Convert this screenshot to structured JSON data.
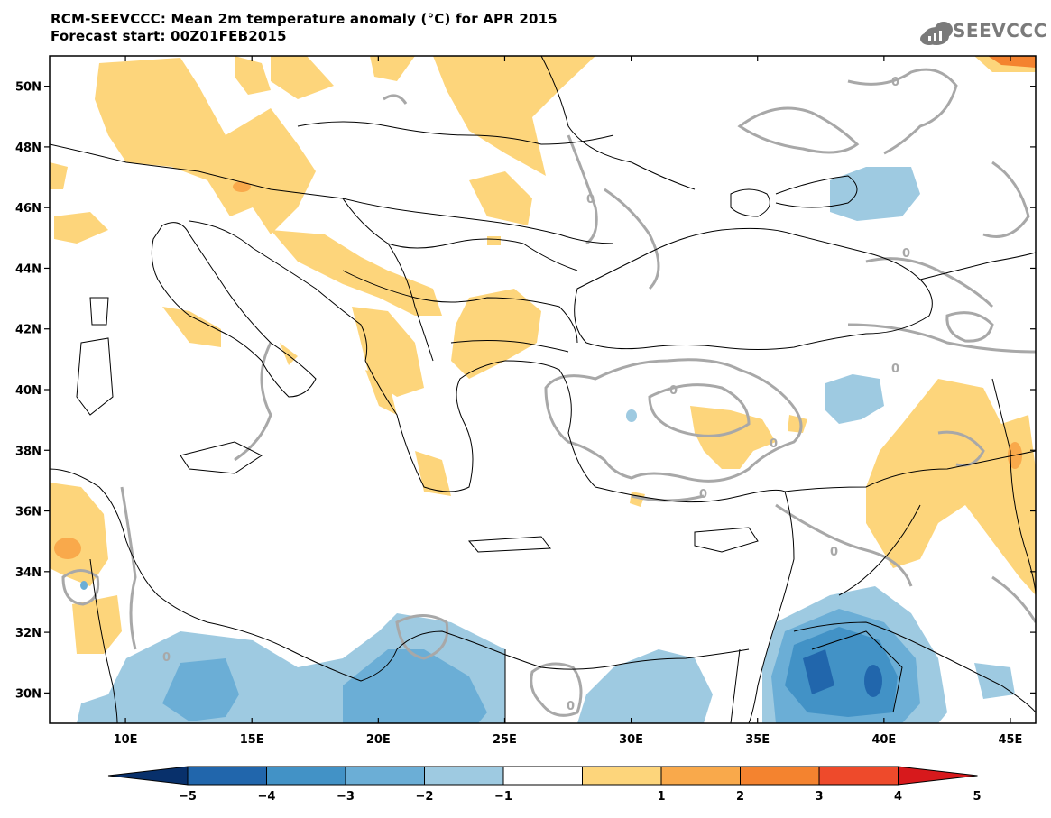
{
  "header": {
    "title_line1": "RCM-SEEVCCC: Mean 2m temperature anomaly (°C) for APR 2015",
    "title_line2": "Forecast start: 00Z01FEB2015",
    "logo_text": "SEEVCCC"
  },
  "map": {
    "lon_range": [
      7,
      46
    ],
    "lat_range": [
      29,
      51
    ],
    "lat_labels": [
      "50N",
      "48N",
      "46N",
      "44N",
      "42N",
      "40N",
      "38N",
      "36N",
      "34N",
      "32N",
      "30N"
    ],
    "lat_values": [
      50,
      48,
      46,
      44,
      42,
      40,
      38,
      36,
      34,
      32,
      30
    ],
    "lon_labels": [
      "10E",
      "15E",
      "20E",
      "25E",
      "30E",
      "35E",
      "40E",
      "45E"
    ],
    "lon_values": [
      10,
      15,
      20,
      25,
      30,
      35,
      40,
      45
    ],
    "contour_label": "0",
    "colors": {
      "pos1": "#fdd57b",
      "pos2": "#f9a94b",
      "pos3": "#f4832f",
      "pos4": "#ee4a2b",
      "pos5": "#d7191c",
      "neg1": "#9ecae1",
      "neg2": "#6baed6",
      "neg3": "#4292c6",
      "neg4": "#2166ac",
      "neg5": "#08306b",
      "border": "#000000",
      "contour": "#a8a8a8"
    }
  },
  "colorbar": {
    "labels": [
      "−5",
      "−4",
      "−3",
      "−2",
      "−1",
      "1",
      "2",
      "3",
      "4",
      "5"
    ],
    "colors": [
      "#08306b",
      "#2166ac",
      "#4292c6",
      "#6baed6",
      "#9ecae1",
      "#ffffff",
      "#fdd57b",
      "#f9a94b",
      "#f4832f",
      "#ee4a2b",
      "#d7191c"
    ]
  }
}
